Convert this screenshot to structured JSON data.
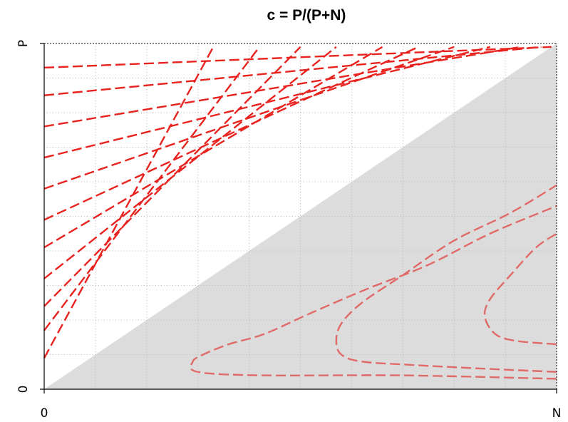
{
  "chart_data": {
    "type": "line",
    "title": "c = P/(P+N)",
    "xlabel": "",
    "ylabel": "",
    "x_tick_labels": [
      "0",
      "N"
    ],
    "y_tick_labels": [
      "0",
      "P"
    ],
    "xlim": [
      0,
      1
    ],
    "ylim": [
      0,
      1
    ],
    "grid": true,
    "shaded_region": "below diagonal P/(P+N) = N/(P+N)",
    "upper_region_isolines": [
      {
        "points": [
          [
            0,
            0.09
          ],
          [
            0.33,
            0.99
          ]
        ]
      },
      {
        "points": [
          [
            0,
            0.17
          ],
          [
            0.42,
            0.99
          ]
        ]
      },
      {
        "points": [
          [
            0,
            0.24
          ],
          [
            0.5,
            0.99
          ]
        ]
      },
      {
        "points": [
          [
            0,
            0.32
          ],
          [
            0.57,
            0.99
          ]
        ]
      },
      {
        "points": [
          [
            0,
            0.41
          ],
          [
            0.66,
            0.99
          ]
        ]
      },
      {
        "points": [
          [
            0,
            0.49
          ],
          [
            0.73,
            0.99
          ]
        ]
      },
      {
        "points": [
          [
            0,
            0.58
          ],
          [
            0.8,
            0.99
          ]
        ]
      },
      {
        "points": [
          [
            0,
            0.67
          ],
          [
            0.87,
            0.99
          ]
        ]
      },
      {
        "points": [
          [
            0,
            0.76
          ],
          [
            0.93,
            0.99
          ]
        ]
      },
      {
        "points": [
          [
            0,
            0.85
          ],
          [
            0.97,
            0.99
          ]
        ]
      },
      {
        "points": [
          [
            0,
            0.93
          ],
          [
            0.99,
            0.99
          ]
        ]
      }
    ],
    "lower_region_isolines": [
      {
        "points": [
          [
            1.0,
            0.03
          ],
          [
            0.7,
            0.04
          ],
          [
            0.43,
            0.04
          ],
          [
            0.3,
            0.05
          ],
          [
            0.29,
            0.08
          ],
          [
            0.31,
            0.1
          ],
          [
            0.36,
            0.13
          ],
          [
            0.43,
            0.16
          ],
          [
            0.52,
            0.22
          ],
          [
            0.63,
            0.29
          ],
          [
            0.75,
            0.36
          ],
          [
            0.87,
            0.45
          ],
          [
            1.0,
            0.53
          ]
        ]
      },
      {
        "points": [
          [
            1.0,
            0.05
          ],
          [
            0.85,
            0.06
          ],
          [
            0.72,
            0.07
          ],
          [
            0.62,
            0.08
          ],
          [
            0.58,
            0.1
          ],
          [
            0.57,
            0.14
          ],
          [
            0.58,
            0.19
          ],
          [
            0.62,
            0.25
          ],
          [
            0.7,
            0.33
          ],
          [
            0.8,
            0.43
          ],
          [
            0.91,
            0.51
          ],
          [
            1.0,
            0.59
          ]
        ]
      },
      {
        "points": [
          [
            1.0,
            0.13
          ],
          [
            0.92,
            0.14
          ],
          [
            0.88,
            0.16
          ],
          [
            0.86,
            0.21
          ],
          [
            0.87,
            0.26
          ],
          [
            0.91,
            0.33
          ],
          [
            0.96,
            0.41
          ],
          [
            1.0,
            0.45
          ]
        ]
      }
    ],
    "colors": {
      "shade": "#dcdcdc",
      "upper_lines": "#e8221e",
      "lower_lines": "#e06a68",
      "grid": "#b8b8b8",
      "axis": "#000000"
    }
  }
}
